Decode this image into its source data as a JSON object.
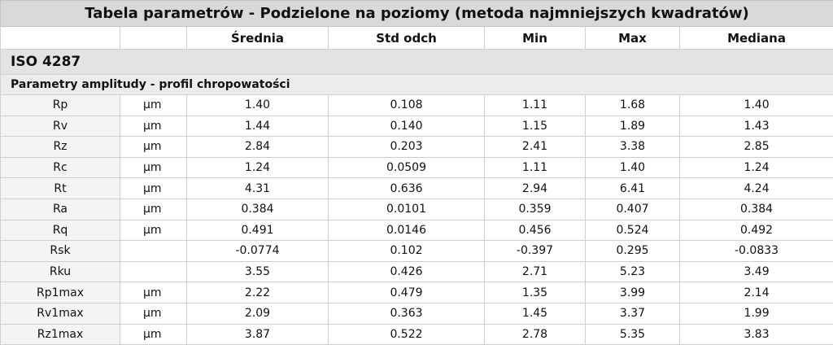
{
  "title": "Tabela parametrów - Podzielone na poziomy (metoda najmniejszych kwadratów)",
  "columns": [
    "",
    "",
    "Średnia",
    "Std odch",
    "Min",
    "Max",
    "Mediana"
  ],
  "section": "ISO 4287",
  "subsection": "Parametry amplitudy - profil chropowatości",
  "rows": [
    {
      "name": "Rp",
      "unit": "µm",
      "mean": "1.40",
      "std": "0.108",
      "min": "1.11",
      "max": "1.68",
      "median": "1.40"
    },
    {
      "name": "Rv",
      "unit": "µm",
      "mean": "1.44",
      "std": "0.140",
      "min": "1.15",
      "max": "1.89",
      "median": "1.43"
    },
    {
      "name": "Rz",
      "unit": "µm",
      "mean": "2.84",
      "std": "0.203",
      "min": "2.41",
      "max": "3.38",
      "median": "2.85"
    },
    {
      "name": "Rc",
      "unit": "µm",
      "mean": "1.24",
      "std": "0.0509",
      "min": "1.11",
      "max": "1.40",
      "median": "1.24"
    },
    {
      "name": "Rt",
      "unit": "µm",
      "mean": "4.31",
      "std": "0.636",
      "min": "2.94",
      "max": "6.41",
      "median": "4.24"
    },
    {
      "name": "Ra",
      "unit": "µm",
      "mean": "0.384",
      "std": "0.0101",
      "min": "0.359",
      "max": "0.407",
      "median": "0.384"
    },
    {
      "name": "Rq",
      "unit": "µm",
      "mean": "0.491",
      "std": "0.0146",
      "min": "0.456",
      "max": "0.524",
      "median": "0.492"
    },
    {
      "name": "Rsk",
      "unit": "",
      "mean": "-0.0774",
      "std": "0.102",
      "min": "-0.397",
      "max": "0.295",
      "median": "-0.0833"
    },
    {
      "name": "Rku",
      "unit": "",
      "mean": "3.55",
      "std": "0.426",
      "min": "2.71",
      "max": "5.23",
      "median": "3.49"
    },
    {
      "name": "Rp1max",
      "unit": "µm",
      "mean": "2.22",
      "std": "0.479",
      "min": "1.35",
      "max": "3.99",
      "median": "2.14"
    },
    {
      "name": "Rv1max",
      "unit": "µm",
      "mean": "2.09",
      "std": "0.363",
      "min": "1.45",
      "max": "3.37",
      "median": "1.99"
    },
    {
      "name": "Rz1max",
      "unit": "µm",
      "mean": "3.87",
      "std": "0.522",
      "min": "2.78",
      "max": "5.35",
      "median": "3.83"
    }
  ]
}
